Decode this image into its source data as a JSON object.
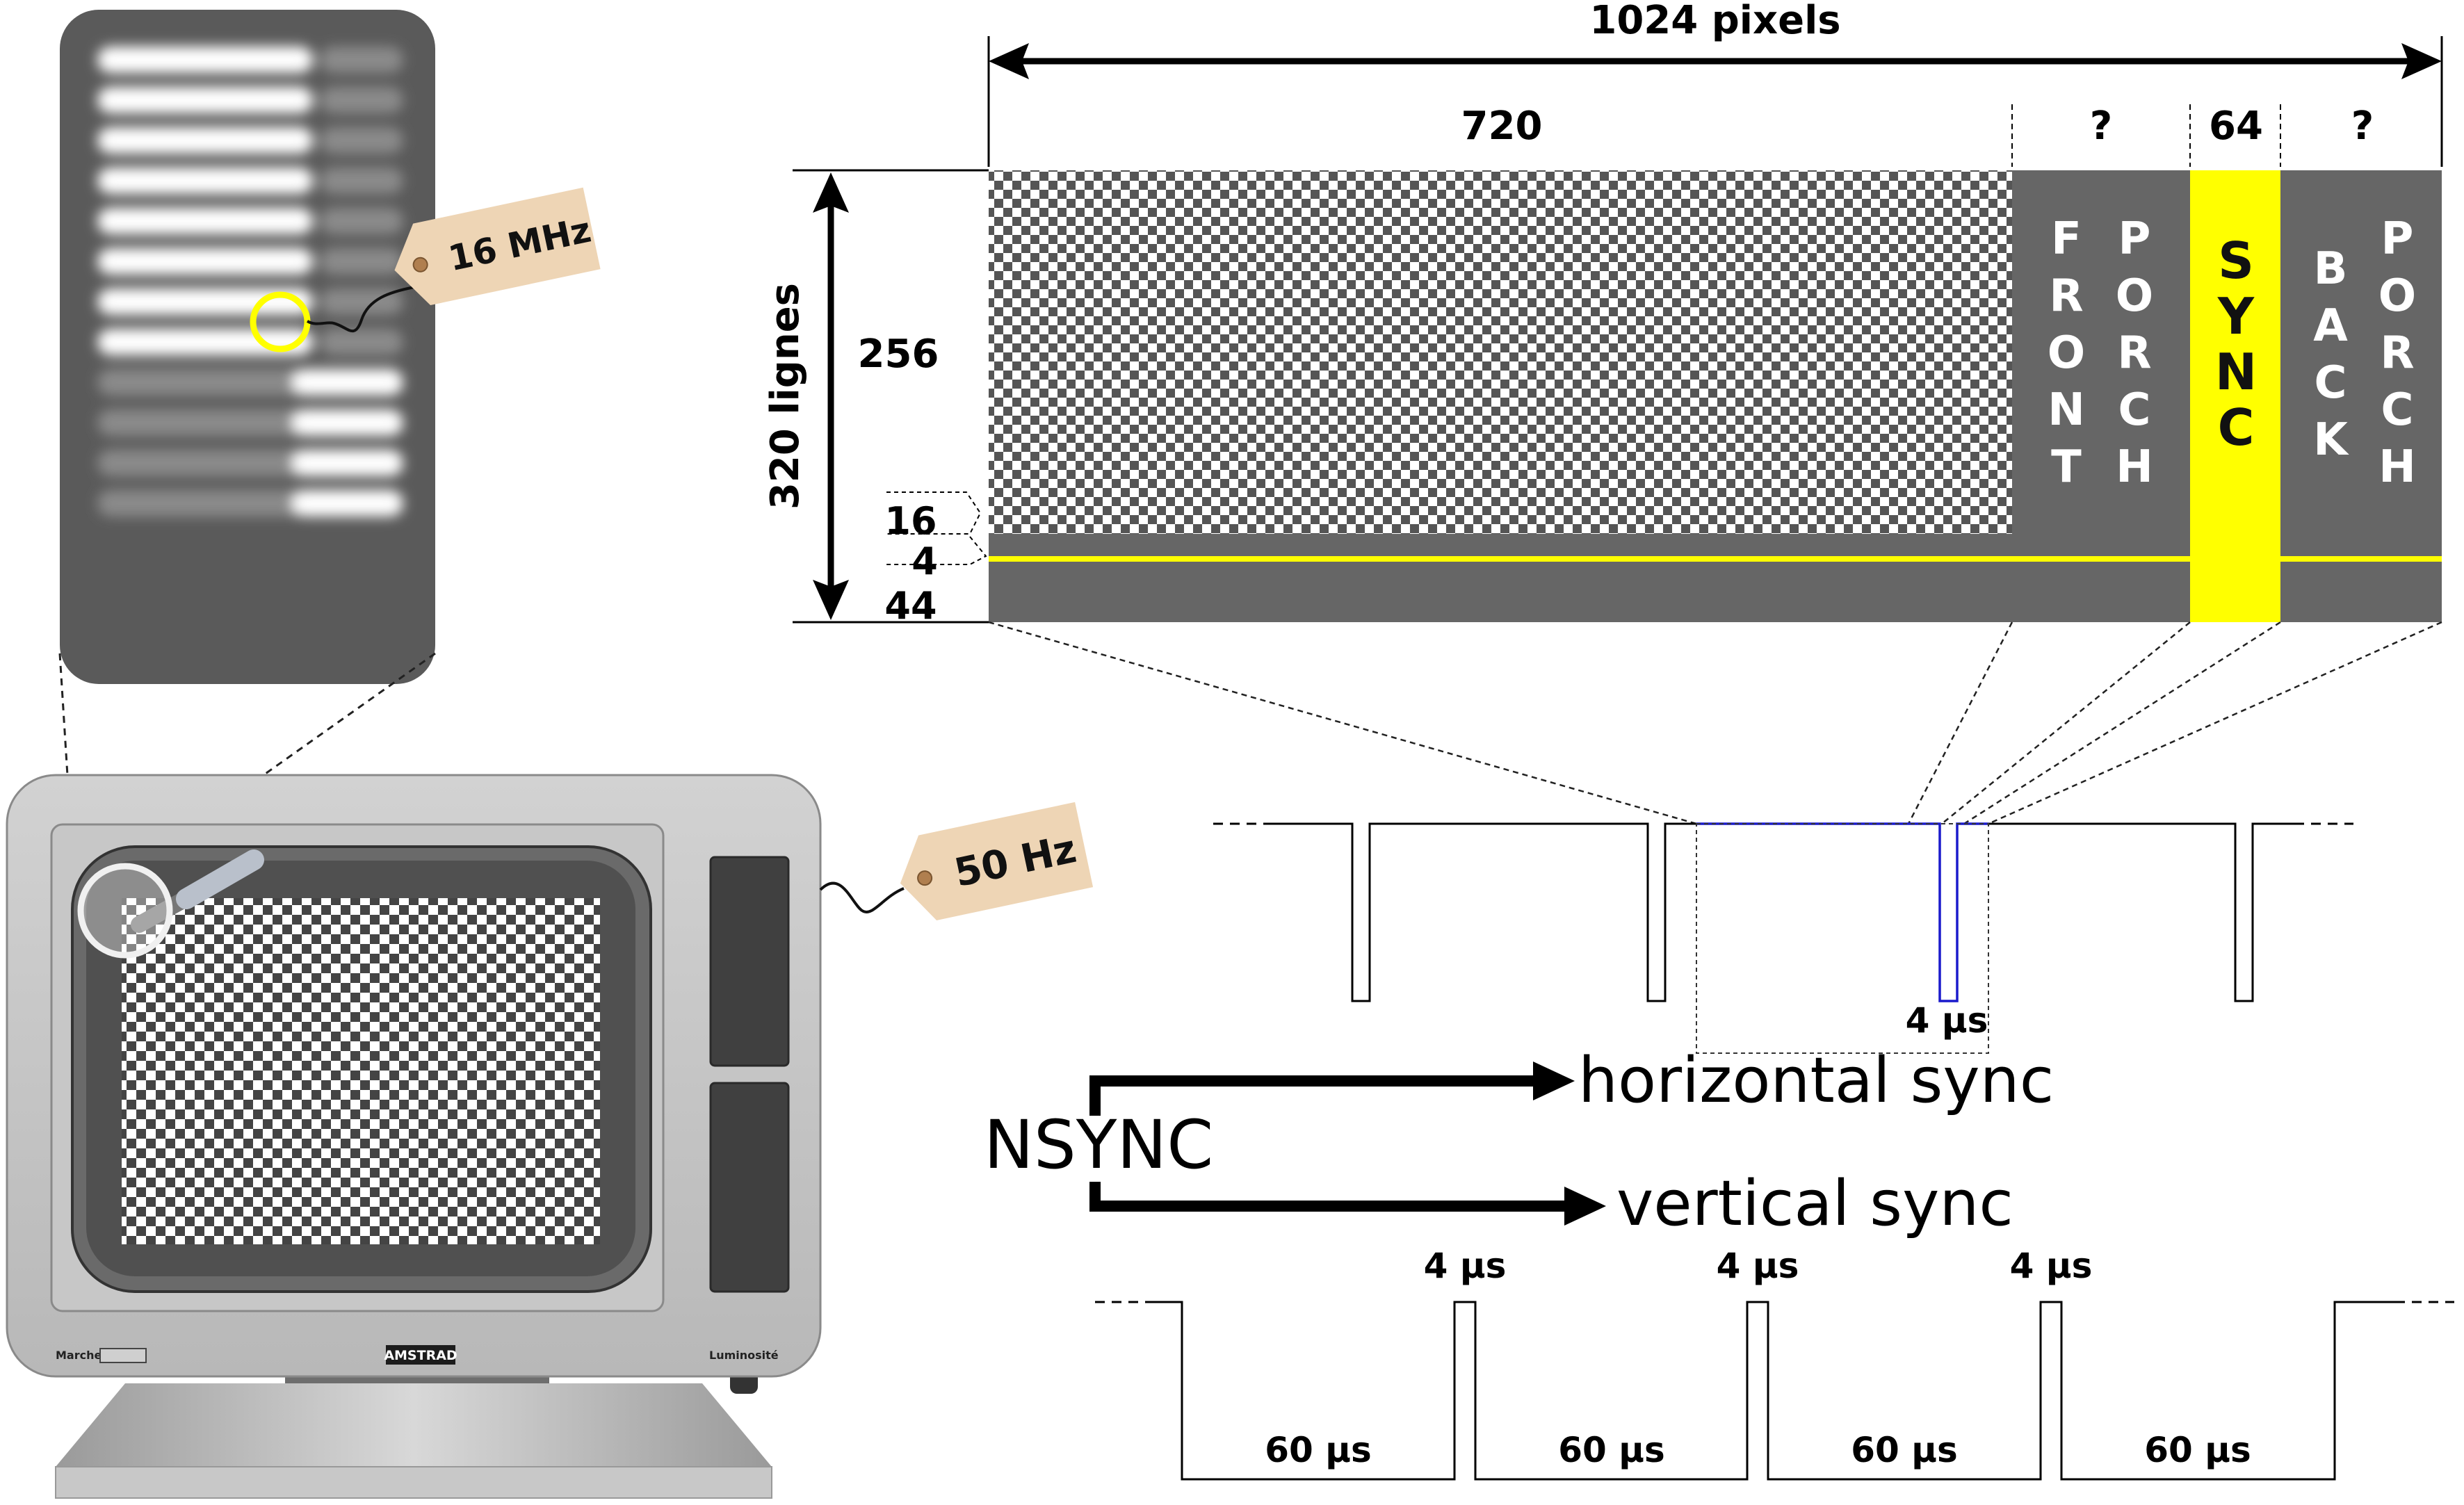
{
  "tags": {
    "pixel_clock": "16 MHz",
    "vertical_rate": "50 Hz"
  },
  "monitor": {
    "brand": "AMSTRAD",
    "power_label": "Marche",
    "brightness_label": "Luminosité"
  },
  "frame": {
    "total_width": "1024 pixels",
    "active_width": "720",
    "front_porch_width": "?",
    "sync_width": "64",
    "back_porch_width": "?",
    "total_lines": "320 lignes",
    "active_lines": "256",
    "lines_16": "16",
    "lines_4": "4",
    "lines_44": "44",
    "front_porch_letters": {
      "col1": [
        "F",
        "R",
        "O",
        "N",
        "T"
      ],
      "col2": [
        "P",
        "O",
        "R",
        "C",
        "H"
      ]
    },
    "sync_letters": [
      "S",
      "Y",
      "N",
      "C"
    ],
    "back_porch_letters": {
      "col1": [
        "B",
        "A",
        "C",
        "K"
      ],
      "col2": [
        "P",
        "O",
        "R",
        "C",
        "H"
      ]
    }
  },
  "signals": {
    "hsync_pulse": "4 µs",
    "nsync": "NSYNC",
    "horizontal": "horizontal sync",
    "vertical": "vertical sync",
    "vsync_pulse_labels": [
      "4 µs",
      "4 µs",
      "4 µs"
    ],
    "vsync_period_labels": [
      "60 µs",
      "60 µs",
      "60 µs",
      "60 µs"
    ]
  },
  "colors": {
    "sync_yellow": "#ffff00",
    "porch_gray": "#666666",
    "highlight_blue": "#1a1acc"
  }
}
